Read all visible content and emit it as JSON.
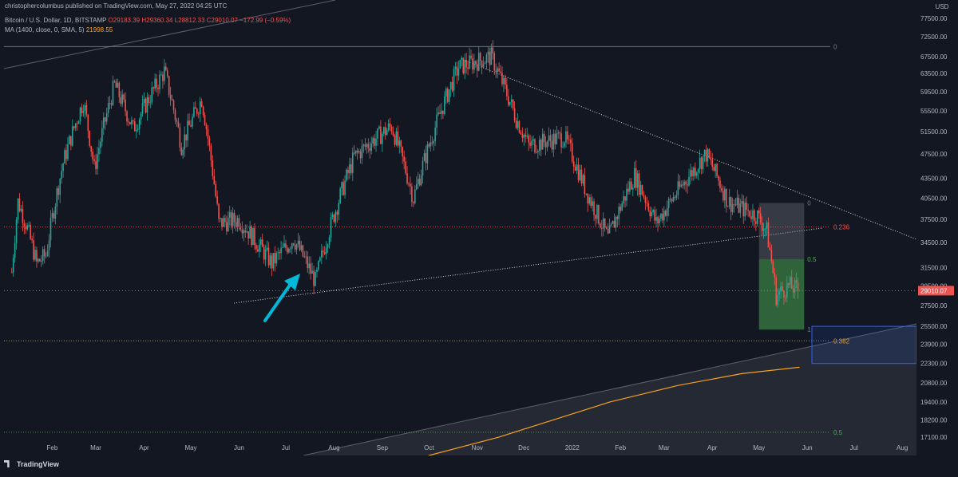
{
  "header": {
    "publisher_line": "christophercolumbus published on TradingView.com, May 27, 2022 04:25 UTC",
    "symbol": "Bitcoin / U.S. Dollar, 1D, BITSTAMP",
    "ohlc": "O29183.39  H29360.34  L28812.33  C29010.07  −172.99 (−0.59%)",
    "ma_label": "MA (1400, close, 0, SMA, 5)",
    "ma_value": "21998.55"
  },
  "footer": {
    "logo": "TradingView"
  },
  "colors": {
    "background": "#131722",
    "up": "#26a69a",
    "down": "#ef5350",
    "ma": "#f7a21b",
    "fib_red": "#ef5350",
    "fib_orange": "#f7a21b",
    "fib_green": "#4caf50",
    "arrow": "#00b8d9",
    "price_tag": "#ef5350"
  },
  "chart_data": {
    "type": "candlestick",
    "currency": "USD",
    "ylim": [
      16000,
      80000
    ],
    "price_axis_labels": [
      "77500.00",
      "72500.00",
      "67500.00",
      "63500.00",
      "59500.00",
      "55500.00",
      "51500.00",
      "47500.00",
      "43500.00",
      "40500.00",
      "37500.00",
      "34500.00",
      "31500.00",
      "29500.00",
      "27500.00",
      "25500.00",
      "23900.00",
      "22300.00",
      "20800.00",
      "19400.00",
      "18200.00",
      "17100.00"
    ],
    "current_price": "29010.07",
    "time_axis_labels": [
      "Feb",
      "Mar",
      "Apr",
      "May",
      "Jun",
      "Jul",
      "Aug",
      "Sep",
      "Oct",
      "Nov",
      "Dec",
      "2022",
      "Feb",
      "Mar",
      "Apr",
      "May",
      "Jun",
      "Jul",
      "Aug"
    ],
    "x_start": "2021-01-06",
    "key_points": [
      {
        "d": "2021-01-06",
        "v": 31000
      },
      {
        "d": "2021-01-10",
        "v": 40000
      },
      {
        "d": "2021-01-15",
        "v": 37000
      },
      {
        "d": "2021-01-22",
        "v": 32000
      },
      {
        "d": "2021-01-28",
        "v": 33000
      },
      {
        "d": "2021-02-08",
        "v": 46000
      },
      {
        "d": "2021-02-21",
        "v": 57500
      },
      {
        "d": "2021-02-28",
        "v": 45000
      },
      {
        "d": "2021-03-13",
        "v": 61000
      },
      {
        "d": "2021-03-25",
        "v": 52000
      },
      {
        "d": "2021-04-14",
        "v": 64000
      },
      {
        "d": "2021-04-25",
        "v": 49000
      },
      {
        "d": "2021-05-08",
        "v": 58000
      },
      {
        "d": "2021-05-19",
        "v": 37000
      },
      {
        "d": "2021-06-01",
        "v": 37500
      },
      {
        "d": "2021-06-22",
        "v": 32000
      },
      {
        "d": "2021-07-06",
        "v": 35000
      },
      {
        "d": "2021-07-20",
        "v": 30000
      },
      {
        "d": "2021-08-14",
        "v": 47000
      },
      {
        "d": "2021-08-22",
        "v": 49000
      },
      {
        "d": "2021-09-07",
        "v": 52500
      },
      {
        "d": "2021-09-21",
        "v": 40500
      },
      {
        "d": "2021-10-20",
        "v": 65000
      },
      {
        "d": "2021-11-10",
        "v": 67500
      },
      {
        "d": "2021-11-26",
        "v": 54000
      },
      {
        "d": "2021-12-04",
        "v": 49000
      },
      {
        "d": "2021-12-27",
        "v": 50500
      },
      {
        "d": "2022-01-10",
        "v": 41500
      },
      {
        "d": "2022-01-24",
        "v": 35000
      },
      {
        "d": "2022-02-10",
        "v": 44000
      },
      {
        "d": "2022-02-24",
        "v": 37000
      },
      {
        "d": "2022-03-28",
        "v": 47500
      },
      {
        "d": "2022-04-11",
        "v": 40000
      },
      {
        "d": "2022-04-30",
        "v": 38000
      },
      {
        "d": "2022-05-06",
        "v": 36000
      },
      {
        "d": "2022-05-12",
        "v": 28500
      },
      {
        "d": "2022-05-20",
        "v": 29500
      },
      {
        "d": "2022-05-27",
        "v": 29010
      }
    ],
    "moving_average": {
      "name": "MA (1400, close, 0, SMA, 5)",
      "points": [
        {
          "d": "2021-08-15",
          "v": 14000
        },
        {
          "d": "2021-10-01",
          "v": 16000
        },
        {
          "d": "2021-11-15",
          "v": 17100
        },
        {
          "d": "2021-12-20",
          "v": 18200
        },
        {
          "d": "2022-01-25",
          "v": 19400
        },
        {
          "d": "2022-03-10",
          "v": 20600
        },
        {
          "d": "2022-04-20",
          "v": 21500
        },
        {
          "d": "2022-05-27",
          "v": 21998.55
        }
      ]
    },
    "fib_levels": [
      {
        "label": "0",
        "price": 70000
      },
      {
        "label": "0.236",
        "price": 36500
      },
      {
        "label": "0.382",
        "price": 24200
      },
      {
        "label": "0.5",
        "price": 17400
      }
    ],
    "fib_box_levels": [
      {
        "label": "0",
        "price": 39800
      },
      {
        "label": "0.5",
        "price": 32500
      },
      {
        "label": "1",
        "price": 25200
      }
    ]
  }
}
